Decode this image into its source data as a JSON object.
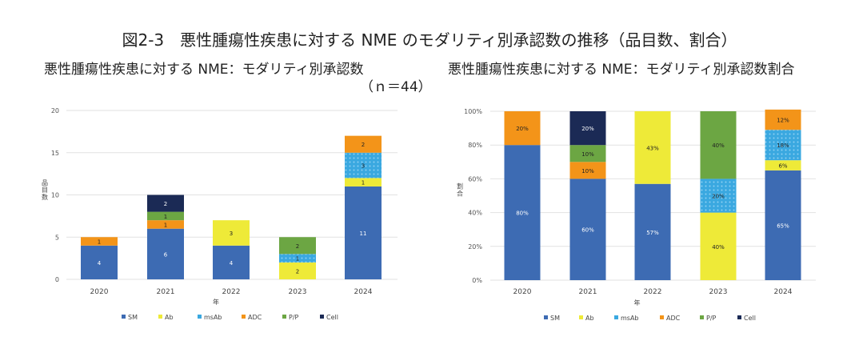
{
  "title": "図2-3　悪性腫瘍性疾患に対する NME のモダリティ別承認数の推移（品目数、割合）",
  "colors": {
    "SM": "#3d6bb3",
    "Ab": "#eeea38",
    "msAb": "#3aa8e0",
    "ADC": "#f39419",
    "P/P": "#6ca643",
    "Cell": "#1b2a55"
  },
  "chart_data": [
    {
      "type": "bar",
      "stacked": true,
      "title": "悪性腫瘍性疾患に対する NME：モダリティ別承認数",
      "subtitle": "（ｎ＝44）",
      "xlabel": "年",
      "ylabel": "品目数",
      "ylim": [
        0,
        20
      ],
      "yticks": [
        "0",
        "5",
        "10",
        "15",
        "20"
      ],
      "yticks_values": [
        0,
        5,
        10,
        15,
        20
      ],
      "grid": true,
      "legend": "bottom",
      "categories": [
        "2020",
        "2021",
        "2022",
        "2023",
        "2024"
      ],
      "series": [
        {
          "name": "SM",
          "values": [
            4,
            6,
            4,
            0,
            11
          ],
          "labels": [
            "4",
            "6",
            "4",
            "",
            "11"
          ]
        },
        {
          "name": "Ab",
          "values": [
            0,
            0,
            3,
            2,
            1
          ],
          "labels": [
            "",
            "",
            "3",
            "2",
            "1"
          ]
        },
        {
          "name": "msAb",
          "values": [
            0,
            0,
            0,
            1,
            3
          ],
          "labels": [
            "",
            "",
            "",
            "1",
            "3"
          ]
        },
        {
          "name": "ADC",
          "values": [
            1,
            1,
            0,
            0,
            2
          ],
          "labels": [
            "1",
            "1",
            "",
            "",
            "2"
          ]
        },
        {
          "name": "P/P",
          "values": [
            0,
            1,
            0,
            2,
            0
          ],
          "labels": [
            "",
            "1",
            "",
            "2",
            ""
          ]
        },
        {
          "name": "Cell",
          "values": [
            0,
            2,
            0,
            0,
            0
          ],
          "labels": [
            "",
            "2",
            "",
            "",
            ""
          ]
        }
      ]
    },
    {
      "type": "bar",
      "stacked": true,
      "title": "悪性腫瘍性疾患に対する NME：モダリティ別承認数割合",
      "xlabel": "年",
      "ylabel": "割合",
      "ylim": [
        0,
        100
      ],
      "yticks": [
        "0%",
        "20%",
        "40%",
        "60%",
        "80%",
        "100%"
      ],
      "yticks_values": [
        0,
        20,
        40,
        60,
        80,
        100
      ],
      "grid": true,
      "legend": "bottom",
      "categories": [
        "2020",
        "2021",
        "2022",
        "2023",
        "2024"
      ],
      "series": [
        {
          "name": "SM",
          "values": [
            80,
            60,
            57,
            0,
            65
          ],
          "labels": [
            "80%",
            "60%",
            "57%",
            "0%",
            "65%"
          ]
        },
        {
          "name": "Ab",
          "values": [
            0,
            0,
            43,
            40,
            6
          ],
          "labels": [
            "",
            "",
            "43%",
            "40%",
            "6%"
          ]
        },
        {
          "name": "msAb",
          "values": [
            0,
            0,
            0,
            20,
            18
          ],
          "labels": [
            "",
            "",
            "",
            "20%",
            "18%"
          ]
        },
        {
          "name": "ADC",
          "values": [
            20,
            10,
            0,
            0,
            12
          ],
          "labels": [
            "20%",
            "10%",
            "",
            "",
            "12%"
          ]
        },
        {
          "name": "P/P",
          "values": [
            0,
            10,
            0,
            40,
            0
          ],
          "labels": [
            "",
            "10%",
            "",
            "40%",
            ""
          ]
        },
        {
          "name": "Cell",
          "values": [
            0,
            20,
            0,
            0,
            0
          ],
          "labels": [
            "",
            "20%",
            "",
            "",
            ""
          ]
        }
      ]
    }
  ]
}
